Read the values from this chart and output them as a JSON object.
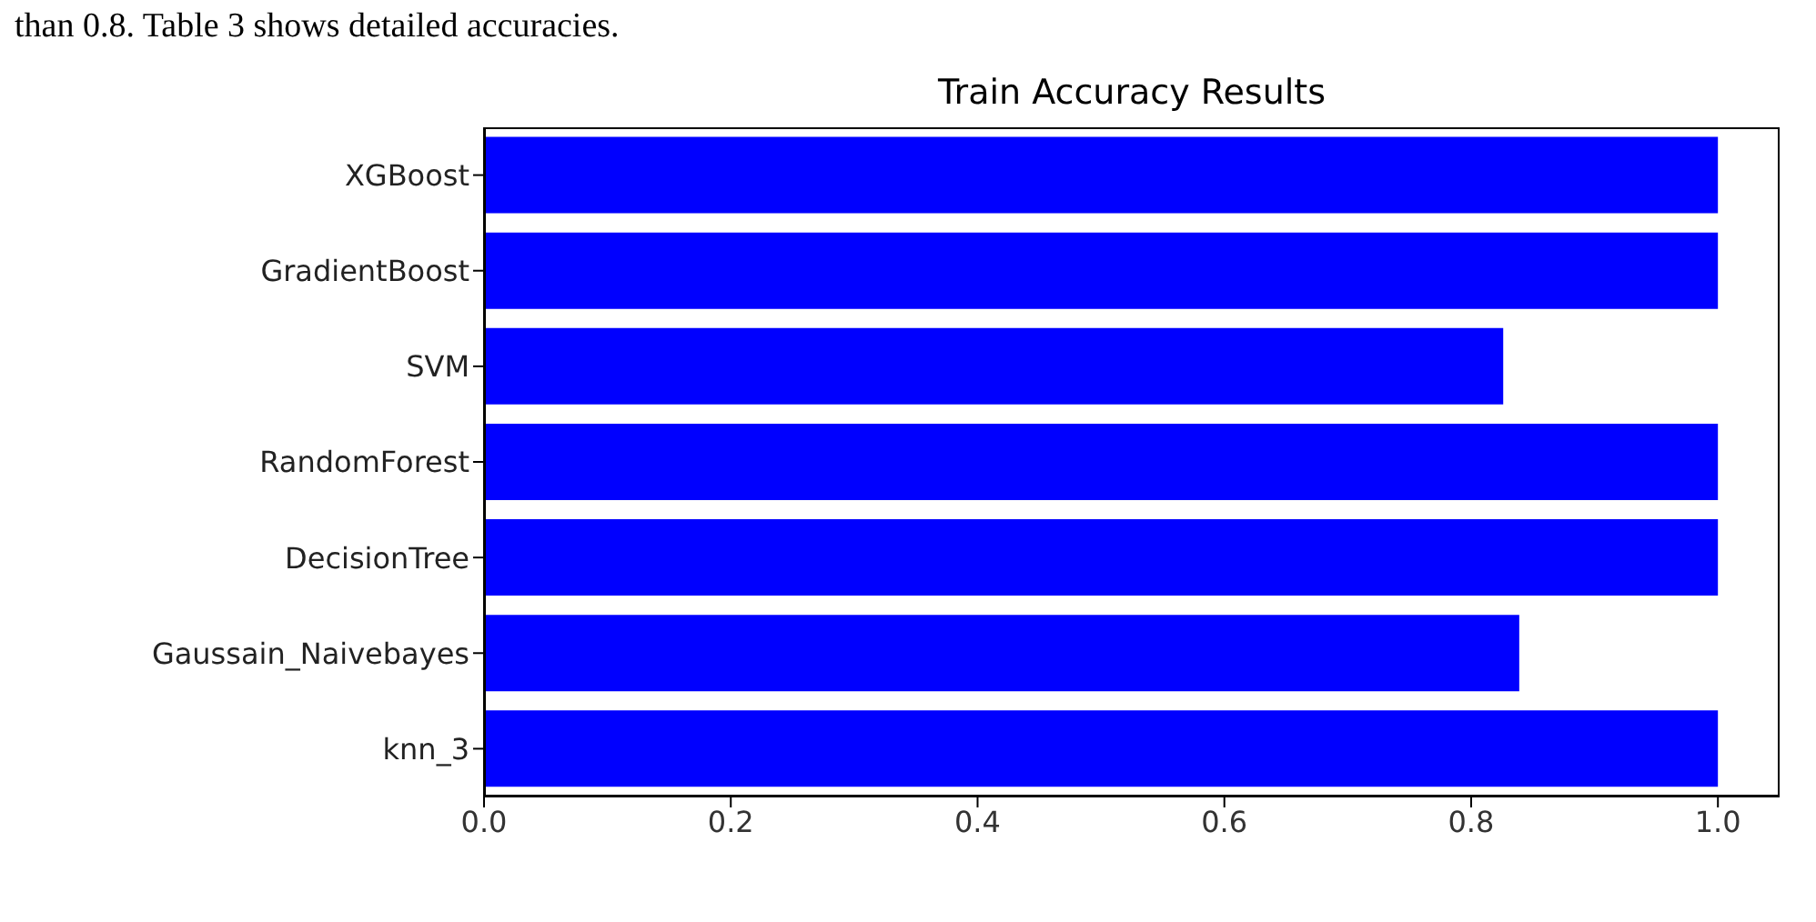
{
  "chart_data": {
    "type": "bar",
    "orientation": "horizontal",
    "title": "Train Accuracy Results",
    "annotations": [
      "than 0.8. Table 3 shows detailed accuracies."
    ],
    "categories": [
      "XGBoost",
      "GradientBoost",
      "SVM",
      "RandomForest",
      "DecisionTree",
      "Gaussain_Naivebayes",
      "knn_3"
    ],
    "values": [
      1.0,
      1.0,
      0.826,
      1.0,
      1.0,
      0.839,
      1.0
    ],
    "color": "#0000ff",
    "xlim": [
      0,
      1.05
    ],
    "xticks": [
      {
        "value": 0,
        "label": "0.0"
      },
      0.2,
      0.4,
      0.6,
      0.8,
      {
        "value": 1,
        "label": "1.0"
      }
    ],
    "grid": false
  }
}
